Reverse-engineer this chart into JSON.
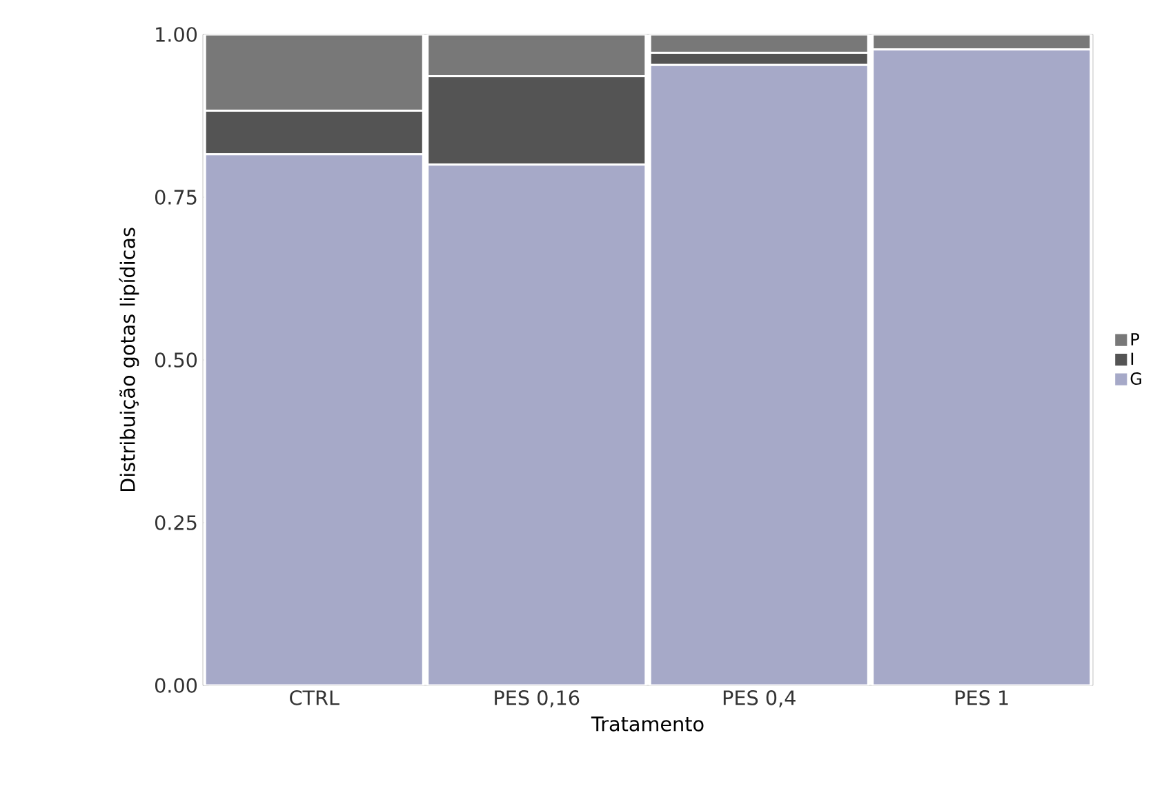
{
  "chart_data": {
    "type": "bar",
    "stacked": true,
    "xlabel": "Tratamento",
    "ylabel": "Distribuição gotas lipídicas",
    "categories": [
      "CTRL",
      "PES 0,16",
      "PES 0,4",
      "PES 1"
    ],
    "series": [
      {
        "name": "G",
        "color": "#a6a9c8",
        "values": [
          0.816,
          0.8,
          0.953,
          0.977
        ]
      },
      {
        "name": "I",
        "color": "#545454",
        "values": [
          0.067,
          0.136,
          0.019,
          0
        ]
      },
      {
        "name": "P",
        "color": "#787878",
        "values": [
          0.117,
          0.064,
          0.028,
          0.023
        ]
      }
    ],
    "ylim": [
      0,
      1
    ],
    "yticks": [
      {
        "value": 0,
        "label": "0.00"
      },
      {
        "value": 0.25,
        "label": "0.25"
      },
      {
        "value": 0.5,
        "label": "0.50"
      },
      {
        "value": 0.75,
        "label": "0.75"
      },
      {
        "value": 1,
        "label": "1.00"
      }
    ],
    "grid": false,
    "legend": "right"
  }
}
